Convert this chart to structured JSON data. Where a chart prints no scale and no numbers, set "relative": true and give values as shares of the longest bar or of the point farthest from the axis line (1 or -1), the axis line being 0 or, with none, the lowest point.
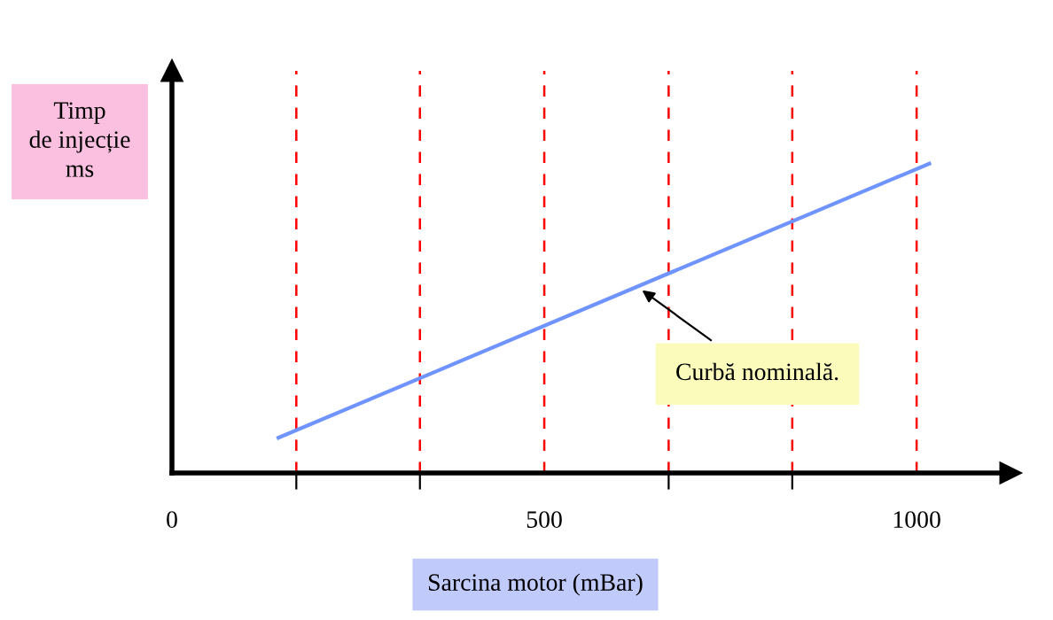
{
  "chart_data": {
    "type": "line",
    "relative": true,
    "xlabel": "Sarcina motor (mBar)",
    "ylabel": "Timp\nde injecție\nms",
    "x": [
      143,
      1017
    ],
    "series": [
      {
        "color": "#6f94ff",
        "values": [
          0.114,
          1
        ]
      }
    ],
    "xlim": [
      0,
      1126
    ],
    "xticks": [
      0,
      {
        "value": 167,
        "label": null
      },
      {
        "value": 333,
        "label": null
      },
      500,
      {
        "value": 667,
        "label": null
      },
      {
        "value": 833,
        "label": null
      },
      1000
    ],
    "ref_lines": [
      {
        "axis": "x",
        "value": 167,
        "color": "#ff0000",
        "line_style": "dashed"
      },
      {
        "axis": "x",
        "value": 333,
        "color": "#ff0000",
        "line_style": "dashed"
      },
      {
        "axis": "x",
        "value": 500,
        "color": "#ff0000",
        "line_style": "dashed"
      },
      {
        "axis": "x",
        "value": 667,
        "color": "#ff0000",
        "line_style": "dashed"
      },
      {
        "axis": "x",
        "value": 833,
        "color": "#ff0000",
        "line_style": "dashed"
      },
      {
        "axis": "x",
        "value": 1000,
        "color": "#ff0000",
        "line_style": "dashed"
      }
    ],
    "annotations": [
      {
        "text": "Curbă nominală.",
        "x": 626,
        "y": 0.6
      }
    ],
    "grid": false,
    "legend": false
  }
}
